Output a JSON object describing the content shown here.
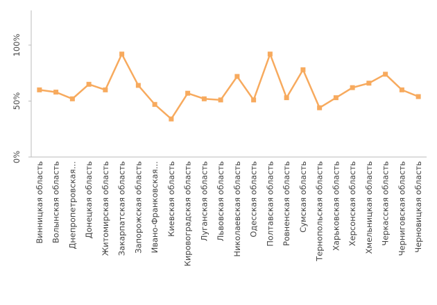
{
  "chart_data": {
    "type": "line",
    "categories": [
      "Винницкая область",
      "Волынская область",
      "Днепропетровская…",
      "Донецкая область",
      "Житомирская область",
      "Закарпатская область",
      "Запорожская область",
      "Ивано-Франковская…",
      "Киевская область",
      "Кировоградская область",
      "Луганская область",
      "Львовская область",
      "Николаевская область",
      "Одесская область",
      "Полтавская область",
      "Ровненская область",
      "Сумская область",
      "Тернопольская область",
      "Харьковская область",
      "Херсонская область",
      "Хмельницкая область",
      "Черкасская область",
      "Черниговская область",
      "Черновицкая область"
    ],
    "values": [
      60,
      58,
      52,
      65,
      60,
      92,
      64,
      47,
      34,
      57,
      52,
      51,
      72,
      51,
      92,
      53,
      78,
      44,
      53,
      62,
      66,
      74,
      60,
      54
    ],
    "color": "#f7aa5e",
    "ylim": [
      0,
      131
    ],
    "yticks": [
      {
        "value": 0,
        "label": "0%"
      },
      {
        "value": 50,
        "label": "50%"
      },
      {
        "value": 100,
        "label": "100%"
      }
    ]
  }
}
